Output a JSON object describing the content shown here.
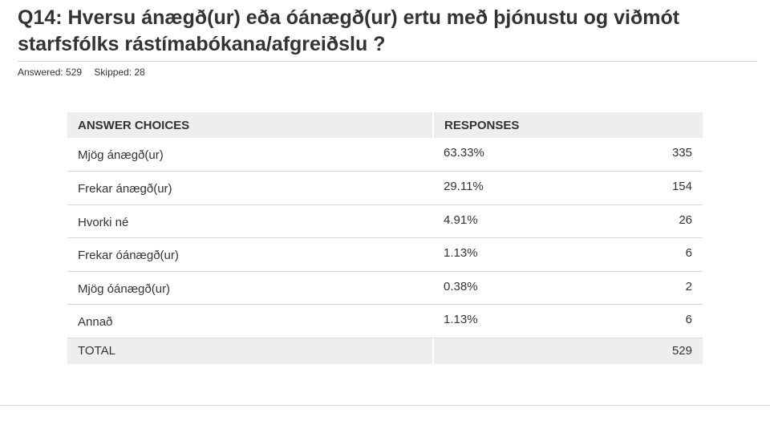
{
  "question": {
    "title": "Q14: Hversu ánægð(ur) eða óánægð(ur) ertu með þjónustu og viðmót starfsfólks rástímabókana/afgreiðslu ?",
    "answered": "Answered: 529",
    "skipped": "Skipped: 28"
  },
  "table": {
    "headers": {
      "choices": "ANSWER CHOICES",
      "responses": "RESPONSES"
    },
    "rows": [
      {
        "choice": "Mjög ánægð(ur)",
        "percent": "63.33%",
        "count": "335"
      },
      {
        "choice": "Frekar ánægð(ur)",
        "percent": "29.11%",
        "count": "154"
      },
      {
        "choice": "Hvorki né",
        "percent": "4.91%",
        "count": "26"
      },
      {
        "choice": "Frekar óánægð(ur)",
        "percent": "1.13%",
        "count": "6"
      },
      {
        "choice": "Mjög óánægð(ur)",
        "percent": "0.38%",
        "count": "2"
      },
      {
        "choice": "Annað",
        "percent": "1.13%",
        "count": "6"
      }
    ],
    "total": {
      "label": "TOTAL",
      "count": "529"
    }
  }
}
